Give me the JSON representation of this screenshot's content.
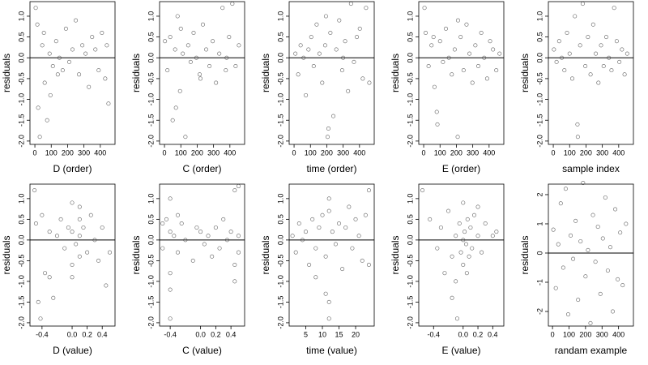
{
  "chart_data": [
    {
      "type": "scatter",
      "xlabel": "D (order)",
      "ylabel": "residuals",
      "color": "#444444",
      "hline": 0,
      "xlim": [
        -30,
        490
      ],
      "ylim": [
        -2.08,
        1.35
      ],
      "xticks": [
        0,
        100,
        200,
        300,
        400
      ],
      "yticks": [
        {
          "value": 1,
          "label": "1.0"
        },
        {
          "value": 0.5,
          "label": "0.5"
        },
        {
          "value": 0,
          "label": "0.0"
        },
        {
          "value": -0.5,
          "label": "-0.5"
        },
        {
          "value": -1,
          "label": "-1.0"
        },
        {
          "value": -1.5,
          "label": "-1.5"
        },
        {
          "value": -2,
          "label": "-2.0"
        }
      ],
      "x": [
        5,
        15,
        30,
        45,
        60,
        75,
        90,
        110,
        130,
        150,
        170,
        190,
        210,
        230,
        250,
        270,
        290,
        310,
        330,
        350,
        370,
        390,
        410,
        430,
        450,
        20,
        55,
        95,
        140,
        440
      ],
      "values": [
        1.2,
        0.8,
        -1.9,
        0.3,
        -0.6,
        -1.5,
        0.1,
        -0.2,
        0.4,
        0.0,
        -0.3,
        0.7,
        -0.1,
        0.2,
        0.9,
        -0.4,
        0.3,
        0.1,
        -0.7,
        0.5,
        0.2,
        -0.3,
        0.6,
        -0.5,
        -1.1,
        -1.2,
        0.6,
        -0.9,
        -0.4,
        0.3
      ]
    },
    {
      "type": "scatter",
      "xlabel": "C (order)",
      "ylabel": "residuals",
      "color": "#444444",
      "hline": 0,
      "xlim": [
        -30,
        490
      ],
      "ylim": [
        -2.08,
        1.35
      ],
      "xticks": [
        0,
        100,
        200,
        300,
        400
      ],
      "yticks": [
        {
          "value": 1,
          "label": "1.0"
        },
        {
          "value": 0.5,
          "label": "0.5"
        },
        {
          "value": 0,
          "label": "0.0"
        },
        {
          "value": -0.5,
          "label": "-0.5"
        },
        {
          "value": -1,
          "label": "-1.0"
        },
        {
          "value": -1.5,
          "label": "-1.5"
        },
        {
          "value": -2,
          "label": "-2.0"
        }
      ],
      "x": [
        3,
        18,
        35,
        50,
        65,
        80,
        95,
        112,
        128,
        145,
        160,
        178,
        195,
        215,
        235,
        255,
        275,
        295,
        315,
        335,
        355,
        375,
        395,
        415,
        435,
        455,
        70,
        100,
        220,
        380
      ],
      "values": [
        0.4,
        -0.3,
        0.5,
        -1.5,
        0.2,
        1.0,
        -0.8,
        0.1,
        -1.9,
        0.3,
        -0.1,
        0.6,
        0.0,
        -0.4,
        0.8,
        0.2,
        -0.2,
        0.4,
        -0.6,
        0.1,
        1.2,
        -0.3,
        0.5,
        1.3,
        -0.2,
        0.3,
        -1.2,
        0.7,
        -0.5,
        0.0
      ]
    },
    {
      "type": "scatter",
      "xlabel": "time (order)",
      "ylabel": "residuals",
      "color": "#444444",
      "hline": 0,
      "xlim": [
        -30,
        490
      ],
      "ylim": [
        -2.08,
        1.35
      ],
      "xticks": [
        0,
        100,
        200,
        300,
        400
      ],
      "yticks": [
        {
          "value": 1,
          "label": "1.0"
        },
        {
          "value": 0.5,
          "label": "0.5"
        },
        {
          "value": 0,
          "label": "0.0"
        },
        {
          "value": -0.5,
          "label": "-0.5"
        },
        {
          "value": -1,
          "label": "-1.0"
        },
        {
          "value": -1.5,
          "label": "-1.5"
        },
        {
          "value": -2,
          "label": "-2.0"
        }
      ],
      "x": [
        8,
        25,
        40,
        58,
        72,
        88,
        105,
        120,
        138,
        155,
        172,
        190,
        205,
        222,
        240,
        258,
        276,
        294,
        312,
        330,
        348,
        366,
        384,
        402,
        420,
        440,
        460,
        210,
        195,
        300
      ],
      "values": [
        0.1,
        -0.4,
        0.3,
        0.0,
        -0.9,
        0.2,
        0.5,
        -0.2,
        0.8,
        0.1,
        -0.6,
        0.3,
        -1.9,
        0.6,
        -1.4,
        0.2,
        0.9,
        -0.3,
        0.4,
        -0.8,
        1.3,
        -0.1,
        0.5,
        0.7,
        -0.5,
        1.2,
        -0.6,
        -1.7,
        1.0,
        0.0
      ]
    },
    {
      "type": "scatter",
      "xlabel": "E (order)",
      "ylabel": "residuals",
      "color": "#444444",
      "hline": 0,
      "xlim": [
        -30,
        490
      ],
      "ylim": [
        -2.08,
        1.35
      ],
      "xticks": [
        0,
        100,
        200,
        300,
        400
      ],
      "yticks": [
        {
          "value": 1,
          "label": "1.0"
        },
        {
          "value": 0.5,
          "label": "0.5"
        },
        {
          "value": 0,
          "label": "0.0"
        },
        {
          "value": -0.5,
          "label": "-0.5"
        },
        {
          "value": -1,
          "label": "-1.0"
        },
        {
          "value": -1.5,
          "label": "-1.5"
        },
        {
          "value": -2,
          "label": "-2.0"
        }
      ],
      "x": [
        5,
        12,
        30,
        48,
        66,
        84,
        100,
        118,
        136,
        154,
        172,
        190,
        208,
        226,
        244,
        262,
        280,
        298,
        316,
        334,
        352,
        370,
        388,
        406,
        424,
        444,
        464,
        80,
        210,
        60
      ],
      "values": [
        1.2,
        0.6,
        -0.2,
        0.3,
        -0.7,
        -1.6,
        0.4,
        -0.1,
        0.7,
        0.0,
        -0.4,
        0.2,
        -1.9,
        0.5,
        -0.3,
        0.8,
        0.1,
        -0.6,
        0.3,
        -0.2,
        0.6,
        0.0,
        -0.5,
        0.4,
        0.2,
        -0.3,
        0.1,
        -1.3,
        0.9,
        0.5
      ]
    },
    {
      "type": "scatter",
      "xlabel": "sample index",
      "ylabel": "residuals",
      "color": "#444444",
      "hline": 0,
      "xlim": [
        -30,
        490
      ],
      "ylim": [
        -2.08,
        1.35
      ],
      "xticks": [
        0,
        100,
        200,
        300,
        400
      ],
      "yticks": [
        {
          "value": 1,
          "label": "1.0"
        },
        {
          "value": 0.5,
          "label": "0.5"
        },
        {
          "value": 0,
          "label": "0.0"
        },
        {
          "value": -0.5,
          "label": "-0.5"
        },
        {
          "value": -1,
          "label": "-1.0"
        },
        {
          "value": -1.5,
          "label": "-1.5"
        },
        {
          "value": -2,
          "label": "-2.0"
        }
      ],
      "x": [
        4,
        20,
        36,
        52,
        68,
        84,
        100,
        116,
        132,
        148,
        164,
        180,
        196,
        212,
        228,
        244,
        260,
        276,
        292,
        308,
        324,
        340,
        356,
        372,
        388,
        404,
        420,
        436,
        452,
        150
      ],
      "values": [
        0.2,
        -0.1,
        0.4,
        0.0,
        -0.3,
        0.6,
        0.1,
        -0.5,
        1.0,
        -1.6,
        0.3,
        1.3,
        -0.2,
        0.5,
        -0.4,
        0.8,
        0.1,
        -0.6,
        0.3,
        -0.2,
        0.5,
        0.0,
        -0.3,
        1.2,
        0.4,
        -0.1,
        0.2,
        -0.4,
        0.1,
        -1.9
      ]
    },
    {
      "type": "scatter",
      "xlabel": "D (value)",
      "ylabel": "residuals",
      "color": "#444444",
      "hline": 0,
      "xlim": [
        -0.56,
        0.57
      ],
      "ylim": [
        -2.08,
        1.35
      ],
      "xticks": [
        -0.4,
        {
          "value": 0,
          "label": "0.0"
        },
        0.2,
        0.4
      ],
      "yticks": [
        {
          "value": 1,
          "label": "1.0"
        },
        {
          "value": 0.5,
          "label": "0.5"
        },
        {
          "value": 0,
          "label": "0.0"
        },
        {
          "value": -0.5,
          "label": "-0.5"
        },
        {
          "value": -1,
          "label": "-1.0"
        },
        {
          "value": -1.5,
          "label": "-1.5"
        },
        {
          "value": -2,
          "label": "-2.0"
        }
      ],
      "x": [
        -0.5,
        -0.48,
        -0.45,
        -0.4,
        -0.36,
        -0.3,
        -0.25,
        -0.2,
        -0.15,
        -0.1,
        -0.05,
        0.0,
        0.0,
        0.0,
        0.05,
        0.1,
        0.1,
        0.1,
        0.15,
        0.2,
        0.25,
        0.3,
        0.35,
        0.4,
        0.45,
        -0.42,
        -0.3,
        0.0,
        0.1,
        0.5
      ],
      "values": [
        1.2,
        0.4,
        -1.5,
        0.6,
        -0.8,
        0.2,
        -1.4,
        0.1,
        0.5,
        -0.2,
        0.3,
        -0.6,
        0.9,
        0.2,
        -0.1,
        0.5,
        -0.4,
        0.1,
        0.3,
        -0.3,
        0.6,
        0.0,
        -0.5,
        0.3,
        -1.1,
        -1.9,
        -0.9,
        -0.9,
        0.8,
        -0.3
      ]
    },
    {
      "type": "scatter",
      "xlabel": "C (value)",
      "ylabel": "residuals",
      "color": "#444444",
      "hline": 0,
      "xlim": [
        -0.54,
        0.58
      ],
      "ylim": [
        -2.08,
        1.35
      ],
      "xticks": [
        -0.4,
        {
          "value": 0,
          "label": "0.0"
        },
        0.2,
        0.4
      ],
      "yticks": [
        {
          "value": 1,
          "label": "1.0"
        },
        {
          "value": 0.5,
          "label": "0.5"
        },
        {
          "value": 0,
          "label": "0.0"
        },
        {
          "value": -0.5,
          "label": "-0.5"
        },
        {
          "value": -1,
          "label": "-1.0"
        },
        {
          "value": -1.5,
          "label": "-1.5"
        },
        {
          "value": -2,
          "label": "-2.0"
        }
      ],
      "x": [
        -0.5,
        -0.5,
        -0.45,
        -0.4,
        -0.4,
        -0.4,
        -0.4,
        -0.35,
        -0.3,
        -0.25,
        -0.2,
        -0.1,
        -0.05,
        0.0,
        0.05,
        0.1,
        0.15,
        0.2,
        0.25,
        0.3,
        0.35,
        0.4,
        0.45,
        0.45,
        0.5,
        0.5,
        -0.4,
        -0.3,
        0.45,
        0.5
      ],
      "values": [
        0.4,
        -0.2,
        0.5,
        1.0,
        -1.9,
        -1.2,
        0.2,
        0.1,
        -0.3,
        0.4,
        0.0,
        -0.5,
        0.3,
        0.2,
        -0.1,
        0.1,
        -0.4,
        0.3,
        -0.2,
        0.5,
        0.0,
        0.2,
        1.2,
        -0.6,
        1.3,
        -0.3,
        -0.8,
        0.6,
        -1.0,
        0.1
      ]
    },
    {
      "type": "scatter",
      "xlabel": "time (value)",
      "ylabel": "residuals",
      "color": "#444444",
      "hline": 0,
      "xlim": [
        0,
        25.6
      ],
      "ylim": [
        -2.08,
        1.35
      ],
      "xticks": [
        5,
        10,
        15,
        20
      ],
      "yticks": [
        {
          "value": 1,
          "label": "1.0"
        },
        {
          "value": 0.5,
          "label": "0.5"
        },
        {
          "value": 0,
          "label": "0.0"
        },
        {
          "value": -0.5,
          "label": "-0.5"
        },
        {
          "value": -1,
          "label": "-1.0"
        },
        {
          "value": -1.5,
          "label": "-1.5"
        },
        {
          "value": -2,
          "label": "-2.0"
        }
      ],
      "x": [
        1,
        2,
        3,
        4,
        5,
        6,
        7,
        8,
        9,
        10,
        11,
        12,
        12,
        12,
        13,
        14,
        15,
        16,
        17,
        18,
        19,
        20,
        21,
        22,
        23,
        24,
        24,
        12,
        11,
        8
      ],
      "values": [
        0.1,
        -0.3,
        0.4,
        0.0,
        0.2,
        -0.6,
        0.5,
        -0.2,
        0.3,
        0.6,
        -0.4,
        1.0,
        -1.9,
        -1.5,
        0.2,
        -0.1,
        0.4,
        -0.7,
        0.3,
        0.8,
        -0.2,
        0.5,
        0.1,
        -0.5,
        0.6,
        1.2,
        -0.6,
        0.7,
        -1.3,
        -0.9
      ]
    },
    {
      "type": "scatter",
      "xlabel": "E (value)",
      "ylabel": "residuals",
      "color": "#444444",
      "hline": 0,
      "xlim": [
        -0.6,
        0.55
      ],
      "ylim": [
        -2.08,
        1.35
      ],
      "xticks": [
        -0.4,
        {
          "value": 0,
          "label": "0.0"
        },
        0.2,
        0.4
      ],
      "yticks": [
        {
          "value": 1,
          "label": "1.0"
        },
        {
          "value": 0.5,
          "label": "0.5"
        },
        {
          "value": 0,
          "label": "0.0"
        },
        {
          "value": -0.5,
          "label": "-0.5"
        },
        {
          "value": -1,
          "label": "-1.0"
        },
        {
          "value": -1.5,
          "label": "-1.5"
        },
        {
          "value": -2,
          "label": "-2.0"
        }
      ],
      "x": [
        -0.55,
        -0.45,
        -0.35,
        -0.3,
        -0.25,
        -0.2,
        -0.15,
        -0.1,
        -0.08,
        -0.05,
        -0.03,
        0.0,
        0.0,
        0.02,
        0.04,
        0.06,
        0.08,
        0.1,
        0.12,
        0.15,
        0.2,
        0.25,
        0.3,
        0.4,
        -0.15,
        -0.1,
        0.0,
        0.05,
        0.2,
        0.45
      ],
      "values": [
        1.2,
        0.5,
        -0.2,
        0.3,
        -0.8,
        0.7,
        -0.4,
        0.1,
        -1.9,
        0.4,
        -0.3,
        0.0,
        -0.6,
        0.2,
        -0.1,
        0.5,
        -0.4,
        0.3,
        -0.2,
        0.6,
        0.1,
        -0.3,
        0.4,
        0.1,
        -1.4,
        -1.0,
        0.9,
        -0.8,
        0.8,
        0.2
      ]
    },
    {
      "type": "scatter",
      "xlabel": "randam example",
      "ylabel": "residuals",
      "color": "#444444",
      "hline": 0,
      "xlim": [
        -25,
        490
      ],
      "ylim": [
        -2.5,
        2.36
      ],
      "xticks": [
        0,
        100,
        200,
        300,
        400
      ],
      "yticks": [
        -2,
        -1,
        0,
        1,
        2
      ],
      "x": [
        5,
        20,
        35,
        50,
        65,
        80,
        95,
        110,
        125,
        140,
        155,
        170,
        185,
        200,
        215,
        230,
        245,
        260,
        275,
        290,
        305,
        320,
        335,
        350,
        365,
        380,
        395,
        410,
        425,
        445
      ],
      "values": [
        0.8,
        -1.2,
        0.3,
        1.7,
        -0.5,
        2.2,
        -2.1,
        0.6,
        -0.2,
        1.1,
        -1.6,
        0.4,
        2.4,
        -0.8,
        0.1,
        -2.4,
        1.3,
        -0.3,
        0.9,
        -1.4,
        0.5,
        1.9,
        -0.6,
        0.2,
        -2.0,
        1.5,
        -0.9,
        0.7,
        -1.1,
        1.0
      ]
    }
  ]
}
